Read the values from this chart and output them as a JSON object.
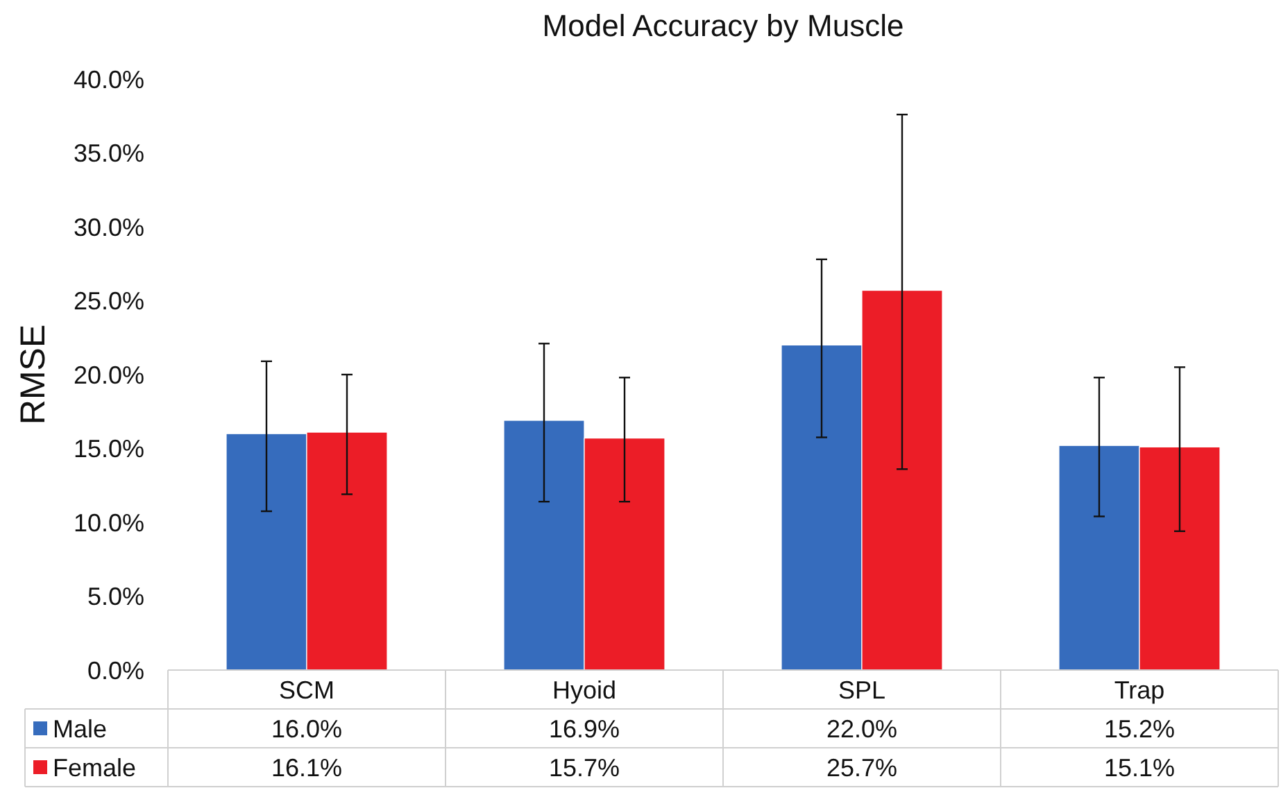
{
  "chart_data": {
    "type": "bar",
    "title": "Model Accuracy by Muscle",
    "ylabel": "RMSE",
    "categories": [
      "SCM",
      "Hyoid",
      "SPL",
      "Trap"
    ],
    "series": [
      {
        "name": "Male",
        "color": "#366cbd",
        "values": [
          16.0,
          16.9,
          22.0,
          15.2
        ],
        "errors": [
          [
            10.75,
            20.9
          ],
          [
            11.4,
            22.1
          ],
          [
            15.75,
            27.8
          ],
          [
            10.4,
            19.8
          ]
        ],
        "value_labels": [
          "16.0%",
          "16.9%",
          "22.0%",
          "15.2%"
        ]
      },
      {
        "name": "Female",
        "color": "#ec1d27",
        "values": [
          16.1,
          15.7,
          25.7,
          15.1
        ],
        "errors": [
          [
            11.9,
            20.0
          ],
          [
            11.4,
            19.8
          ],
          [
            13.6,
            37.6
          ],
          [
            9.4,
            20.5
          ]
        ],
        "value_labels": [
          "16.1%",
          "15.7%",
          "25.7%",
          "15.1%"
        ]
      }
    ],
    "ylim": [
      0,
      40
    ],
    "yticks": [
      {
        "value": 0,
        "label": "0.0%"
      },
      {
        "value": 5,
        "label": "5.0%"
      },
      {
        "value": 10,
        "label": "10.0%"
      },
      {
        "value": 15,
        "label": "15.0%"
      },
      {
        "value": 20,
        "label": "20.0%"
      },
      {
        "value": 25,
        "label": "25.0%"
      },
      {
        "value": 30,
        "label": "30.0%"
      },
      {
        "value": 35,
        "label": "35.0%"
      },
      {
        "value": 40,
        "label": "40.0%"
      }
    ],
    "grid": false,
    "legend": "bottom"
  }
}
